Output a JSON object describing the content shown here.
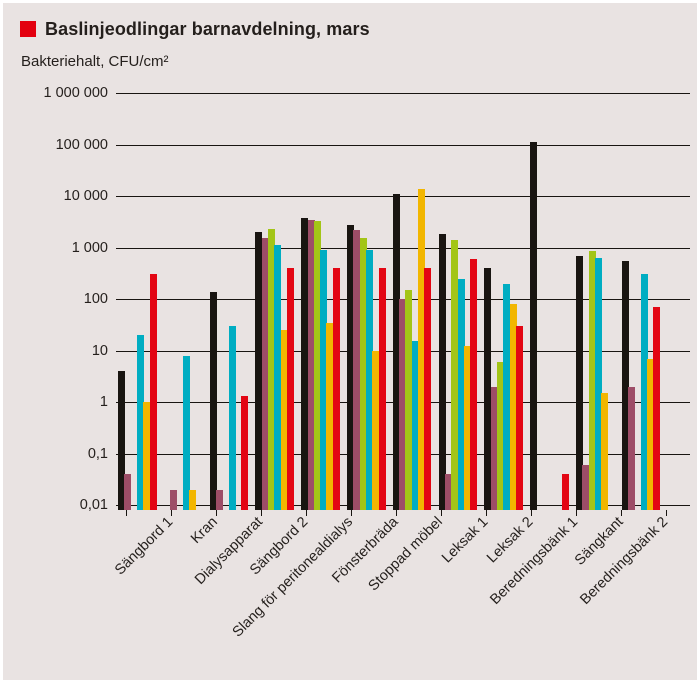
{
  "header": {
    "title": "Baslinjeodlingar barnavdelning, mars",
    "subtitle": "Bakteriehalt, CFU/cm²",
    "bullet_color": "#e3000f"
  },
  "chart_data": {
    "type": "bar",
    "scale": "log",
    "title": "Baslinjeodlingar barnavdelning, mars",
    "ylabel": "Bakteriehalt, CFU/cm²",
    "ylim": [
      0.01,
      1000000
    ],
    "grid": true,
    "legend_position": "none",
    "background_color": "#e9e3e2",
    "ytick_values": [
      1000000,
      100000,
      10000,
      1000,
      100,
      10,
      1,
      0.1,
      0.01
    ],
    "ytick_labels": [
      "1 000 000",
      "100 000",
      "10 000",
      "1 000",
      "100",
      "10",
      "1",
      "0,1",
      "0,01"
    ],
    "categories": [
      "Sängbord 1",
      "Kran",
      "Dialysapparat",
      "Sängbord 2",
      "Slang för peritonealdialys",
      "Fönsterbräda",
      "Stoppad möbel",
      "Leksak 1",
      "Leksak 2",
      "Beredningsbänk 1",
      "Sängkant",
      "Beredningsbänk 2"
    ],
    "series": [
      {
        "name": "black",
        "color": "#191511",
        "values": [
          4,
          null,
          140,
          2000,
          3800,
          2800,
          11000,
          1800,
          400,
          110000,
          700,
          550
        ]
      },
      {
        "name": "plum",
        "color": "#9d4d67",
        "values": [
          0.04,
          0.02,
          0.02,
          1500,
          3500,
          2200,
          100,
          0.04,
          2,
          null,
          0.06,
          2
        ]
      },
      {
        "name": "green",
        "color": "#a3c517",
        "values": [
          null,
          null,
          null,
          2300,
          3300,
          1500,
          150,
          1400,
          6,
          null,
          850,
          null
        ]
      },
      {
        "name": "cyan",
        "color": "#00adc2",
        "values": [
          20,
          8,
          30,
          1100,
          900,
          900,
          15,
          250,
          200,
          null,
          620,
          300
        ]
      },
      {
        "name": "yellow",
        "color": "#f2b600",
        "values": [
          1,
          0.02,
          null,
          25,
          35,
          10,
          14000,
          12,
          80,
          null,
          1.5,
          7
        ]
      },
      {
        "name": "red",
        "color": "#e30613",
        "values": [
          300,
          null,
          1.3,
          400,
          400,
          400,
          400,
          600,
          30,
          0.04,
          null,
          70
        ]
      }
    ]
  }
}
